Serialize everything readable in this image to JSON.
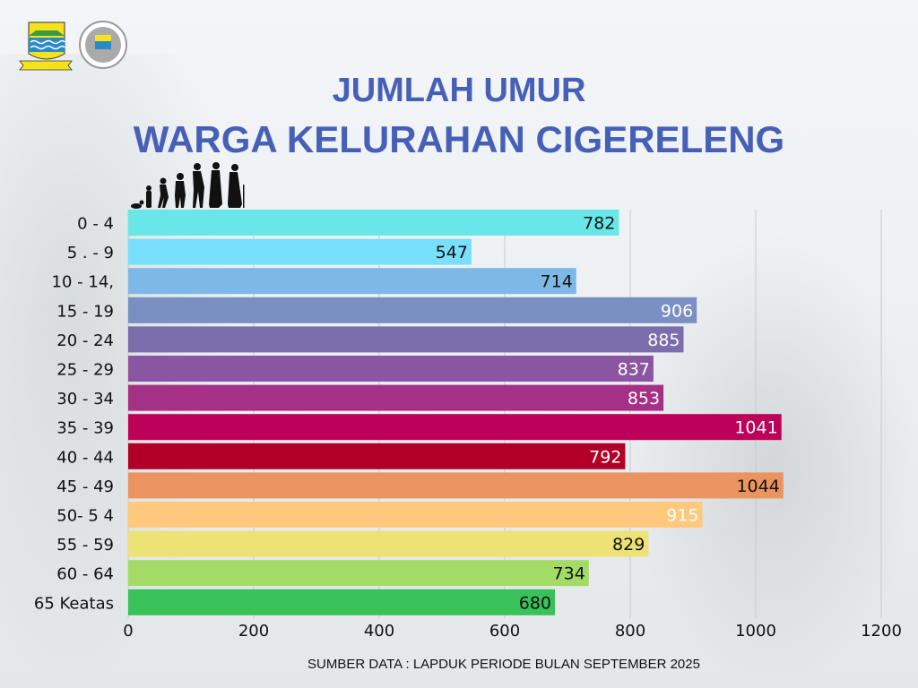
{
  "header": {
    "title_line1": "JUMLAH UMUR",
    "title_line2": "WARGA KELURAHAN CIGERELENG"
  },
  "footer": {
    "source": "SUMBER DATA : LAPDUK PERIODE BULAN SEPTEMBER 2025"
  },
  "chart_data": {
    "type": "bar",
    "orientation": "horizontal",
    "title": "JUMLAH UMUR WARGA KELURAHAN CIGERELENG",
    "categories": [
      "0 - 4",
      "5 . - 9",
      "10 - 14,",
      "15 - 19",
      "20 - 24",
      "25 - 29",
      "30 - 34",
      "35 - 39",
      "40 - 44",
      "45 - 49",
      "50- 5 4",
      "55 - 59",
      "60 - 64",
      "65 Keatas"
    ],
    "values": [
      782,
      547,
      714,
      906,
      885,
      837,
      853,
      1041,
      792,
      1044,
      915,
      829,
      734,
      680
    ],
    "colors": [
      "#69e6e8",
      "#78dffd",
      "#7db8e6",
      "#7a8fc2",
      "#7b6cac",
      "#8c55a1",
      "#a53186",
      "#bd015a",
      "#b00027",
      "#ec9460",
      "#fec97d",
      "#ece276",
      "#a2dc66",
      "#39c15a"
    ],
    "label_colors": [
      "#111111",
      "#111111",
      "#111111",
      "#ffffff",
      "#ffffff",
      "#ffffff",
      "#ffffff",
      "#ffffff",
      "#ffffff",
      "#111111",
      "#ffffff",
      "#111111",
      "#111111",
      "#111111"
    ],
    "xlim": [
      0,
      1200
    ],
    "xticks": [
      0,
      200,
      400,
      600,
      800,
      1000,
      1200
    ],
    "grid": true
  }
}
